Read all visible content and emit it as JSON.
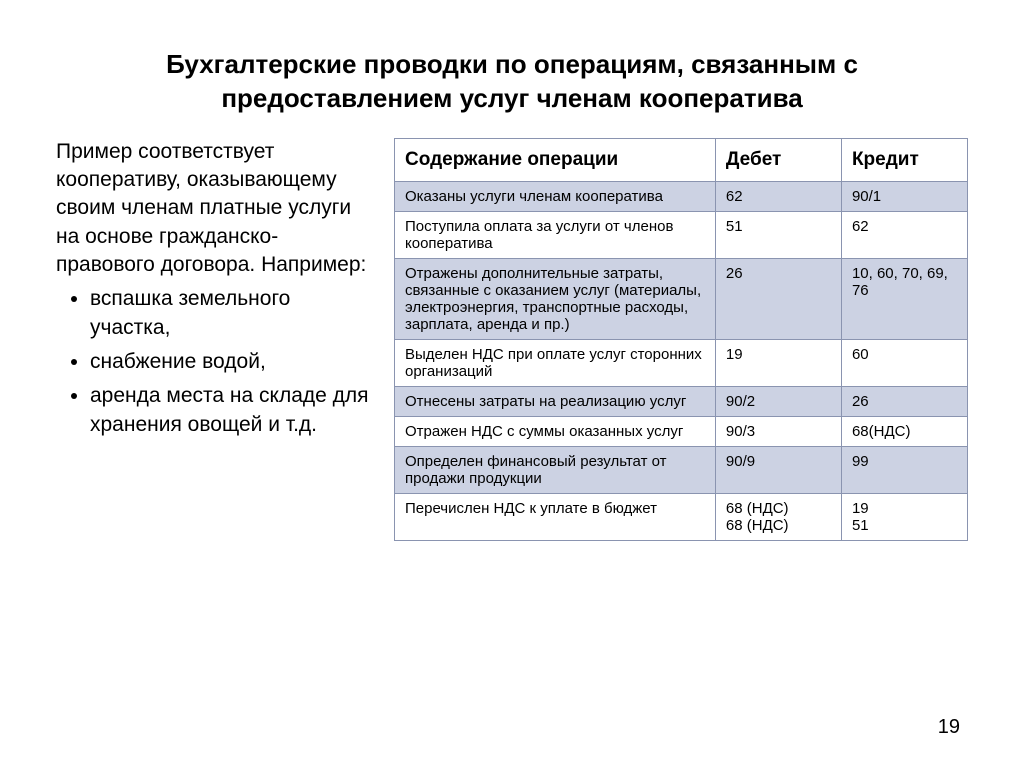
{
  "title": "Бухгалтерские проводки по операциям, связанным с предоставлением услуг членам кооператива",
  "intro": "Пример соответствует кооперативу, оказывающему своим членам платные услуги на основе гражданско-правового договора. Например:",
  "bullets": [
    "вспашка земельного участка,",
    "снабжение водой,",
    "аренда места на складе для хранения овощей и т.д."
  ],
  "table": {
    "columns": [
      "Содержание операции",
      "Дебет",
      "Кредит"
    ],
    "header_bg": "#ffffff",
    "border_color": "#8a94b0",
    "shaded_bg": "#ccd2e3",
    "plain_bg": "#ffffff",
    "font_size_header": 19,
    "font_size_body": 15,
    "rows": [
      {
        "shaded": true,
        "op": "Оказаны услуги членам кооператива",
        "debit": "62",
        "credit": "90/1"
      },
      {
        "shaded": false,
        "op": "Поступила оплата за услуги от членов кооператива",
        "debit": "51",
        "credit": "62"
      },
      {
        "shaded": true,
        "op": "Отражены дополнительные затраты, связанные с оказанием услуг (материалы, электроэнергия, транспортные расходы, зарплата, аренда и пр.)",
        "debit": "26",
        "credit": "10, 60, 70, 69, 76"
      },
      {
        "shaded": false,
        "op": "Выделен НДС при оплате услуг сторонних организаций",
        "debit": "19",
        "credit": "60"
      },
      {
        "shaded": true,
        "op": "Отнесены затраты на реализацию услуг",
        "debit": "90/2",
        "credit": "26"
      },
      {
        "shaded": false,
        "op": "Отражен НДС с суммы оказанных услуг",
        "debit": "90/3",
        "credit": "68(НДС)"
      },
      {
        "shaded": true,
        "op": "Определен финансовый результат от продажи продукции",
        "debit": "90/9",
        "credit": "99"
      },
      {
        "shaded": false,
        "op": "Перечислен НДС к уплате в бюджет",
        "debit": "68 (НДС)\n68 (НДС)",
        "credit": "19\n51"
      }
    ]
  },
  "page_number": "19",
  "colors": {
    "text": "#000000",
    "background": "#ffffff"
  }
}
